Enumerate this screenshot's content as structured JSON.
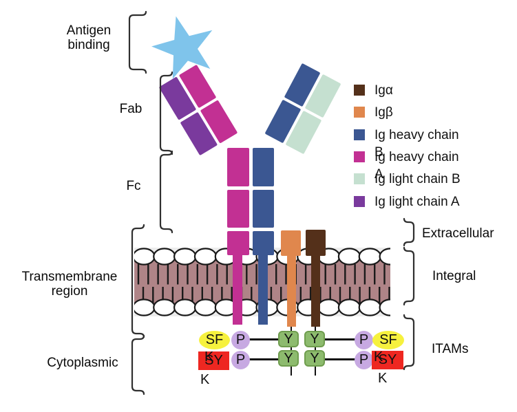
{
  "labels": {
    "antigen_binding": "Antigen binding",
    "fab": "Fab",
    "fc": "Fc",
    "transmembrane": "Transmembrane region",
    "cytoplasmic": "Cytoplasmic",
    "extracellular": "Extracellular",
    "integral": "Integral",
    "itams": "ITAMs"
  },
  "legend": {
    "items": [
      {
        "label": "Igα",
        "label2": "",
        "color": "#54301a"
      },
      {
        "label": "Igβ",
        "label2": "",
        "color": "#e0874d"
      },
      {
        "label": "Ig heavy chain",
        "label2": "B",
        "color": "#3b5792"
      },
      {
        "label": "Ig heavy chain",
        "label2": "A",
        "color": "#c23093"
      },
      {
        "label": "Ig light chain B",
        "label2": "",
        "color": "#c5e0d0"
      },
      {
        "label": "Ig light chain A",
        "label2": "",
        "color": "#7a3a9d"
      }
    ]
  },
  "itam": {
    "p": "P",
    "y": "Y",
    "sf": "SF",
    "sy": "SY",
    "k": "K"
  },
  "palette": {
    "heavy_chain_a_magenta": "#c23093",
    "heavy_chain_b_blue": "#3b5792",
    "light_chain_a_purple": "#7a3a9d",
    "light_chain_b_mint": "#c5e0d0",
    "ig_alpha_brown": "#54301a",
    "ig_beta_orange": "#e0874d",
    "antigen_star_blue": "#7fc4eb",
    "phospho_lavender": "#c7a9e2",
    "tyrosine_green": "#8dbb6e",
    "sfk_yellow": "#f6f13e",
    "syk_red": "#ee2721",
    "membrane_mauve": "#af8487",
    "membrane_gray": "#ececec",
    "membrane_outline": "#1a1a1a"
  }
}
